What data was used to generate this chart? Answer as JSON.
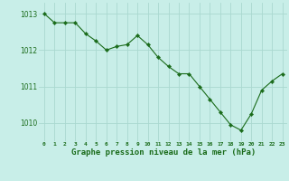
{
  "x": [
    0,
    1,
    2,
    3,
    4,
    5,
    6,
    7,
    8,
    9,
    10,
    11,
    12,
    13,
    14,
    15,
    16,
    17,
    18,
    19,
    20,
    21,
    22,
    23
  ],
  "y": [
    1013.0,
    1012.75,
    1012.75,
    1012.75,
    1012.45,
    1012.25,
    1012.0,
    1012.1,
    1012.15,
    1012.4,
    1012.15,
    1011.8,
    1011.55,
    1011.35,
    1011.35,
    1011.0,
    1010.65,
    1010.3,
    1009.95,
    1009.8,
    1010.25,
    1010.9,
    1011.15,
    1011.35
  ],
  "line_color": "#1a6b1a",
  "marker": "D",
  "marker_size": 2.2,
  "bg_color": "#c8eee8",
  "grid_color": "#aad8d0",
  "xlabel": "Graphe pression niveau de la mer (hPa)",
  "xlabel_color": "#1a6b1a",
  "tick_color": "#1a6b1a",
  "ylim": [
    1009.5,
    1013.3
  ],
  "yticks": [
    1010,
    1011,
    1012,
    1013
  ],
  "xticks": [
    0,
    1,
    2,
    3,
    4,
    5,
    6,
    7,
    8,
    9,
    10,
    11,
    12,
    13,
    14,
    15,
    16,
    17,
    18,
    19,
    20,
    21,
    22,
    23
  ]
}
